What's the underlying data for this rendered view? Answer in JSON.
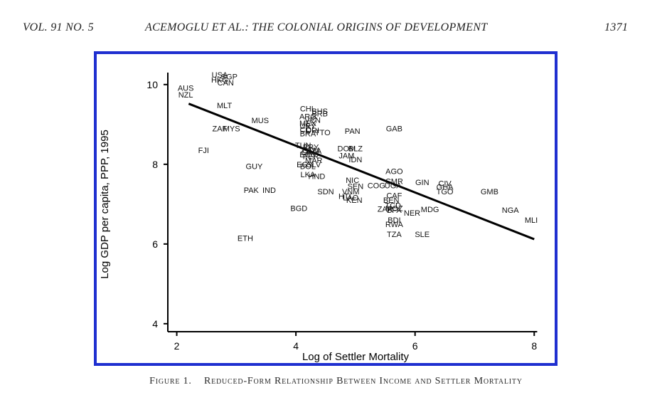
{
  "running_head": {
    "volume": "VOL. 91 NO. 5",
    "title": "ACEMOGLU ET AL.: THE COLONIAL ORIGINS OF DEVELOPMENT",
    "page": "1371"
  },
  "figure": {
    "caption_label": "Figure 1.",
    "caption_title": "Reduced-Form Relationship Between Income and Settler Mortality",
    "frame_color": "#1f2fd0"
  },
  "chart_data": {
    "type": "scatter",
    "xlabel": "Log of Settler Mortality",
    "ylabel": "Log GDP per capita, PPP, 1995",
    "xlim": [
      1.85,
      8.2
    ],
    "ylim": [
      3.8,
      10.55
    ],
    "xticks": [
      2,
      4,
      6,
      8
    ],
    "yticks": [
      4,
      6,
      8,
      10
    ],
    "grid": false,
    "fit_line": {
      "x": [
        2.2,
        8.0
      ],
      "y": [
        9.52,
        6.12
      ]
    },
    "points": [
      {
        "label": "USA",
        "x": 2.72,
        "y": 10.25
      },
      {
        "label": "SGP",
        "x": 2.88,
        "y": 10.2
      },
      {
        "label": "HKG",
        "x": 2.72,
        "y": 10.12
      },
      {
        "label": "CAN",
        "x": 2.82,
        "y": 10.05
      },
      {
        "label": "AUS",
        "x": 2.15,
        "y": 9.92
      },
      {
        "label": "NZL",
        "x": 2.15,
        "y": 9.75
      },
      {
        "label": "MLT",
        "x": 2.8,
        "y": 9.48
      },
      {
        "label": "CHL",
        "x": 4.2,
        "y": 9.4
      },
      {
        "label": "BHS",
        "x": 4.4,
        "y": 9.34
      },
      {
        "label": "BRB",
        "x": 4.4,
        "y": 9.27
      },
      {
        "label": "ARG",
        "x": 4.2,
        "y": 9.2
      },
      {
        "label": "VEN",
        "x": 4.28,
        "y": 9.11
      },
      {
        "label": "MUS",
        "x": 3.4,
        "y": 9.1
      },
      {
        "label": "MEX",
        "x": 4.2,
        "y": 9.03
      },
      {
        "label": "URY",
        "x": 4.2,
        "y": 8.96
      },
      {
        "label": "ZAF",
        "x": 2.72,
        "y": 8.9
      },
      {
        "label": "MYS",
        "x": 2.92,
        "y": 8.9
      },
      {
        "label": "GAB",
        "x": 5.65,
        "y": 8.9
      },
      {
        "label": "COL",
        "x": 4.2,
        "y": 8.87
      },
      {
        "label": "DRI",
        "x": 4.28,
        "y": 8.85
      },
      {
        "label": "PAN",
        "x": 4.95,
        "y": 8.84
      },
      {
        "label": "TTO",
        "x": 4.45,
        "y": 8.8
      },
      {
        "label": "BRA",
        "x": 4.2,
        "y": 8.77
      },
      {
        "label": "TUN",
        "x": 4.12,
        "y": 8.48
      },
      {
        "label": "PRY",
        "x": 4.25,
        "y": 8.43
      },
      {
        "label": "DOM",
        "x": 4.85,
        "y": 8.4
      },
      {
        "label": "BLZ",
        "x": 5.0,
        "y": 8.4
      },
      {
        "label": "GTM",
        "x": 4.25,
        "y": 8.35
      },
      {
        "label": "CRI",
        "x": 4.2,
        "y": 8.3
      },
      {
        "label": "DZA",
        "x": 4.3,
        "y": 8.34
      },
      {
        "label": "ECU",
        "x": 4.2,
        "y": 8.25
      },
      {
        "label": "PER",
        "x": 4.25,
        "y": 8.2
      },
      {
        "label": "JAM",
        "x": 4.85,
        "y": 8.22
      },
      {
        "label": "IDN",
        "x": 5.0,
        "y": 8.12
      },
      {
        "label": "MAR",
        "x": 4.3,
        "y": 8.1
      },
      {
        "label": "EGY",
        "x": 4.15,
        "y": 8.0
      },
      {
        "label": "SLV",
        "x": 4.3,
        "y": 8.0
      },
      {
        "label": "GUY",
        "x": 3.3,
        "y": 7.95
      },
      {
        "label": "BOL",
        "x": 4.2,
        "y": 7.95
      },
      {
        "label": "FJI",
        "x": 2.45,
        "y": 8.35
      },
      {
        "label": "AGO",
        "x": 5.65,
        "y": 7.83
      },
      {
        "label": "LKA",
        "x": 4.2,
        "y": 7.75
      },
      {
        "label": "HND",
        "x": 4.35,
        "y": 7.7
      },
      {
        "label": "NIC",
        "x": 4.95,
        "y": 7.6
      },
      {
        "label": "CMR",
        "x": 5.65,
        "y": 7.58
      },
      {
        "label": "GIN",
        "x": 6.12,
        "y": 7.55
      },
      {
        "label": "CIV",
        "x": 6.5,
        "y": 7.52
      },
      {
        "label": "SEN",
        "x": 5.0,
        "y": 7.45
      },
      {
        "label": "COG",
        "x": 5.35,
        "y": 7.47
      },
      {
        "label": "UGA",
        "x": 5.63,
        "y": 7.47
      },
      {
        "label": "GHA",
        "x": 6.5,
        "y": 7.43
      },
      {
        "label": "PAK",
        "x": 3.25,
        "y": 7.35
      },
      {
        "label": "IND",
        "x": 3.55,
        "y": 7.35
      },
      {
        "label": "SDN",
        "x": 4.5,
        "y": 7.32
      },
      {
        "label": "VNM",
        "x": 4.92,
        "y": 7.32
      },
      {
        "label": "TGO",
        "x": 6.5,
        "y": 7.32
      },
      {
        "label": "GMB",
        "x": 7.25,
        "y": 7.32
      },
      {
        "label": "CAF",
        "x": 5.65,
        "y": 7.22
      },
      {
        "label": "HTI",
        "x": 4.82,
        "y": 7.2
      },
      {
        "label": "LAO",
        "x": 4.92,
        "y": 7.17
      },
      {
        "label": "KEN",
        "x": 4.98,
        "y": 7.1
      },
      {
        "label": "BEN",
        "x": 5.6,
        "y": 7.1
      },
      {
        "label": "BGD",
        "x": 4.05,
        "y": 6.9
      },
      {
        "label": "TCD",
        "x": 5.63,
        "y": 6.97
      },
      {
        "label": "ZAR",
        "x": 5.5,
        "y": 6.88
      },
      {
        "label": "MOZ",
        "x": 5.65,
        "y": 6.9
      },
      {
        "label": "BFA",
        "x": 5.65,
        "y": 6.85
      },
      {
        "label": "MDG",
        "x": 6.25,
        "y": 6.87
      },
      {
        "label": "NER",
        "x": 5.95,
        "y": 6.78
      },
      {
        "label": "NGA",
        "x": 7.6,
        "y": 6.85
      },
      {
        "label": "MLI",
        "x": 7.95,
        "y": 6.6
      },
      {
        "label": "BDI",
        "x": 5.65,
        "y": 6.6
      },
      {
        "label": "RWA",
        "x": 5.65,
        "y": 6.5
      },
      {
        "label": "TZA",
        "x": 5.65,
        "y": 6.25
      },
      {
        "label": "SLE",
        "x": 6.12,
        "y": 6.25
      },
      {
        "label": "ETH",
        "x": 3.15,
        "y": 6.15
      }
    ]
  }
}
